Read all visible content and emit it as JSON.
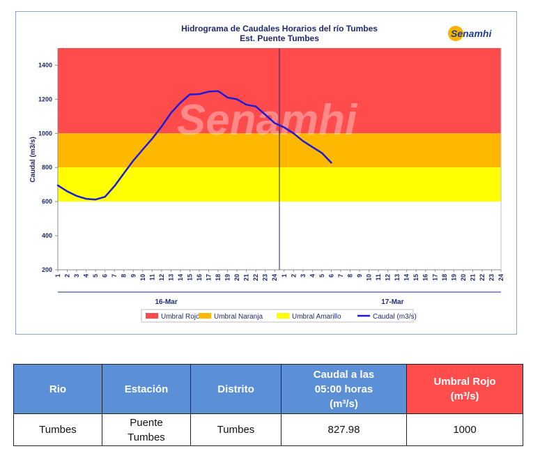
{
  "chart_data": {
    "type": "line",
    "title": "Hidrograma de Caudales Horarios del río Tumbes",
    "subtitle": "Est. Puente Tumbes",
    "ylabel": "Caudal  (m3/s)",
    "ylim": [
      200,
      1500
    ],
    "yticks": [
      200,
      400,
      600,
      800,
      1000,
      1200,
      1400
    ],
    "x_ticks": [
      "1",
      "2",
      "3",
      "4",
      "5",
      "6",
      "7",
      "8",
      "9",
      "10",
      "11",
      "12",
      "13",
      "14",
      "15",
      "16",
      "17",
      "18",
      "19",
      "20",
      "21",
      "22",
      "23",
      "24",
      "1",
      "2",
      "3",
      "4",
      "5",
      "6",
      "7",
      "8",
      "9",
      "10",
      "11",
      "12",
      "13",
      "14",
      "15",
      "16",
      "17",
      "18",
      "19",
      "20",
      "21",
      "22",
      "23",
      "24"
    ],
    "day_labels": [
      "16-Mar",
      "17-Mar"
    ],
    "thresholds": [
      {
        "name": "Umbral Rojo",
        "from": 1000,
        "to": 1500,
        "color": "#ff4b4b"
      },
      {
        "name": "Umbral Naranja",
        "from": 800,
        "to": 1000,
        "color": "#ffb800"
      },
      {
        "name": "Umbral Amarillo",
        "from": 600,
        "to": 800,
        "color": "#ffff00"
      }
    ],
    "series": [
      {
        "name": "Caudal (m3/s)",
        "color": "#1a1adb",
        "x": [
          0,
          1,
          2,
          3,
          4,
          5,
          6,
          7,
          8,
          9,
          10,
          11,
          12,
          13,
          14,
          15,
          16,
          17,
          18,
          19,
          20,
          21,
          22,
          23,
          24,
          25,
          26,
          27,
          28,
          29
        ],
        "values": [
          695,
          660,
          633,
          616,
          612,
          628,
          690,
          765,
          840,
          905,
          968,
          1040,
          1120,
          1180,
          1228,
          1230,
          1245,
          1248,
          1210,
          1200,
          1168,
          1158,
          1110,
          1060,
          1035,
          1000,
          955,
          920,
          885,
          828
        ]
      }
    ],
    "grid": false,
    "legend_position": "bottom"
  },
  "logo_text": "Senamhi",
  "watermark_text": "Senamhi",
  "table": {
    "headers": {
      "rio": "Rio",
      "estacion": "Estación",
      "distrito": "Distrito",
      "caudal_line1": "Caudal a las",
      "caudal_line2": "05:00 horas",
      "caudal_line3": "(m³/s)",
      "umbral_line1": "Umbral Rojo",
      "umbral_line2": "(m³/s)"
    },
    "row": {
      "rio": "Tumbes",
      "estacion_line1": "Puente",
      "estacion_line2": "Tumbes",
      "distrito": "Tumbes",
      "caudal": "827.98",
      "umbral": "1000"
    }
  }
}
